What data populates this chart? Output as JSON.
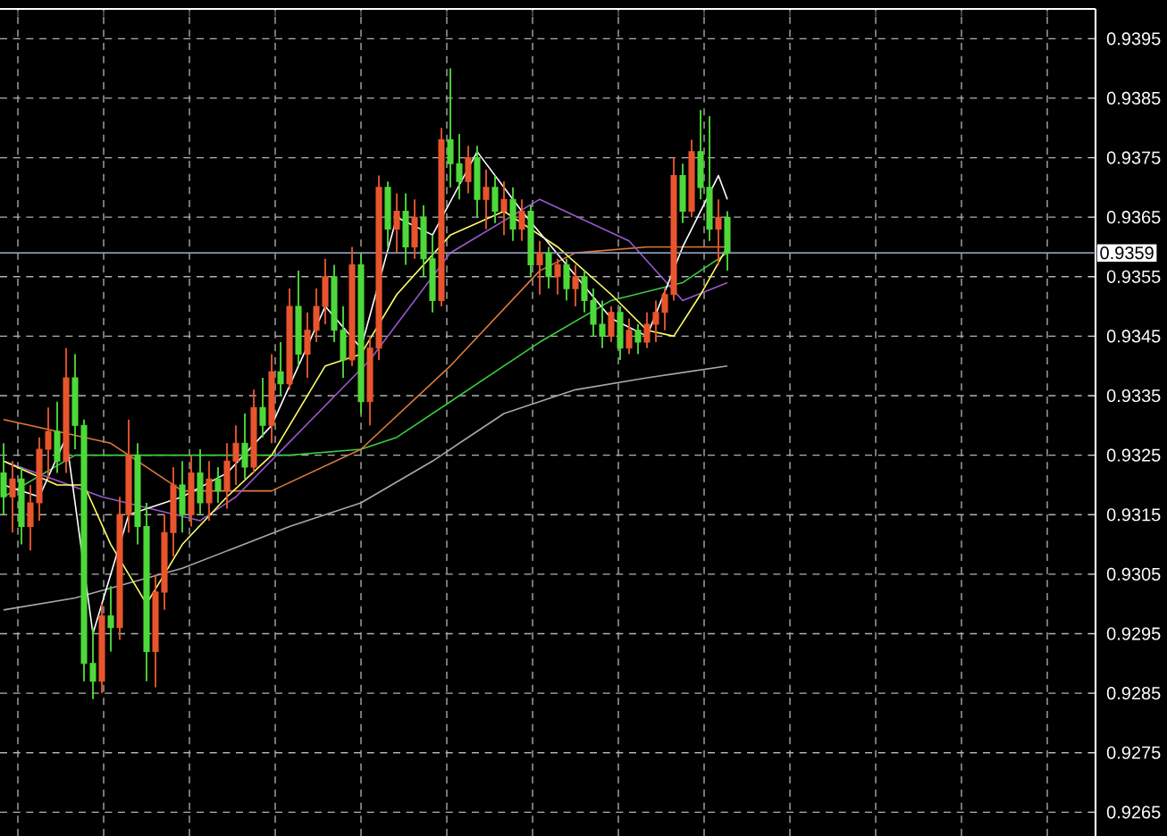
{
  "chart_data": {
    "type": "candlestick",
    "categories": [
      null,
      null,
      null,
      null,
      null,
      null,
      null,
      null,
      null,
      null,
      null,
      null,
      null,
      null,
      null,
      null,
      null,
      null,
      null,
      null,
      null,
      null,
      null,
      null,
      null,
      null,
      null,
      null,
      null,
      null,
      null,
      null,
      null,
      null,
      null,
      null,
      null,
      null,
      null,
      null,
      null,
      null,
      null,
      null,
      null,
      null,
      null,
      null,
      null,
      null,
      null,
      null,
      null,
      null,
      null,
      null,
      null,
      null,
      null,
      null,
      null,
      null,
      null,
      null,
      null,
      null,
      null,
      null,
      null,
      null,
      null,
      null,
      null,
      null,
      null,
      null,
      null,
      null,
      null,
      null,
      null,
      null,
      null,
      null,
      null,
      null,
      null,
      null,
      null,
      null,
      null,
      null,
      null,
      null,
      null,
      null,
      null,
      null,
      null,
      null,
      null,
      null,
      null,
      null,
      null,
      null,
      null,
      null,
      null,
      null,
      null,
      null,
      null,
      null,
      null,
      null,
      null,
      null,
      null,
      null,
      null,
      null,
      null
    ],
    "ohlc": [
      [
        0.9322,
        0.9327,
        0.9315,
        0.9318
      ],
      [
        0.9318,
        0.9324,
        0.9312,
        0.9321
      ],
      [
        0.9321,
        0.9323,
        0.931,
        0.9313
      ],
      [
        0.9313,
        0.932,
        0.9309,
        0.9317
      ],
      [
        0.9317,
        0.9328,
        0.9314,
        0.9326
      ],
      [
        0.9326,
        0.9333,
        0.9321,
        0.9329
      ],
      [
        0.9329,
        0.9334,
        0.9322,
        0.9324
      ],
      [
        0.9324,
        0.9343,
        0.9322,
        0.9338
      ],
      [
        0.9338,
        0.9342,
        0.9326,
        0.933
      ],
      [
        0.933,
        0.9331,
        0.9287,
        0.929
      ],
      [
        0.929,
        0.9296,
        0.9284,
        0.9287
      ],
      [
        0.9287,
        0.93,
        0.9285,
        0.9298
      ],
      [
        0.9298,
        0.9303,
        0.9292,
        0.9296
      ],
      [
        0.9296,
        0.9318,
        0.9294,
        0.9315
      ],
      [
        0.9315,
        0.9331,
        0.9312,
        0.9325
      ],
      [
        0.9325,
        0.9327,
        0.931,
        0.9313
      ],
      [
        0.9313,
        0.9317,
        0.9287,
        0.9292
      ],
      [
        0.9292,
        0.9305,
        0.9286,
        0.9302
      ],
      [
        0.9302,
        0.9315,
        0.9299,
        0.9312
      ],
      [
        0.9312,
        0.9323,
        0.9308,
        0.932
      ],
      [
        0.932,
        0.9324,
        0.9312,
        0.9315
      ],
      [
        0.9315,
        0.9325,
        0.9313,
        0.9322
      ],
      [
        0.9322,
        0.9326,
        0.9315,
        0.9317
      ],
      [
        0.9317,
        0.9324,
        0.9314,
        0.9321
      ],
      [
        0.9321,
        0.9323,
        0.9317,
        0.9319
      ],
      [
        0.9319,
        0.9327,
        0.9316,
        0.9324
      ],
      [
        0.9324,
        0.933,
        0.932,
        0.9327
      ],
      [
        0.9327,
        0.9332,
        0.9321,
        0.9323
      ],
      [
        0.9323,
        0.9336,
        0.9322,
        0.9333
      ],
      [
        0.9333,
        0.9338,
        0.9328,
        0.933
      ],
      [
        0.933,
        0.9342,
        0.9327,
        0.9339
      ],
      [
        0.9339,
        0.9344,
        0.9335,
        0.9337
      ],
      [
        0.9337,
        0.9353,
        0.9336,
        0.935
      ],
      [
        0.935,
        0.9356,
        0.934,
        0.9342
      ],
      [
        0.9342,
        0.9349,
        0.9338,
        0.9346
      ],
      [
        0.9346,
        0.9353,
        0.9344,
        0.935
      ],
      [
        0.935,
        0.9358,
        0.9347,
        0.9355
      ],
      [
        0.9355,
        0.9357,
        0.9344,
        0.9346
      ],
      [
        0.9346,
        0.935,
        0.9338,
        0.9341
      ],
      [
        0.9341,
        0.936,
        0.934,
        0.9357
      ],
      [
        0.9357,
        0.9359,
        0.9332,
        0.9334
      ],
      [
        0.9334,
        0.9345,
        0.933,
        0.9343
      ],
      [
        0.9343,
        0.9372,
        0.9341,
        0.937
      ],
      [
        0.937,
        0.9371,
        0.936,
        0.9363
      ],
      [
        0.9363,
        0.9369,
        0.9359,
        0.9366
      ],
      [
        0.9366,
        0.9369,
        0.9357,
        0.936
      ],
      [
        0.936,
        0.9368,
        0.9358,
        0.9365
      ],
      [
        0.9365,
        0.9367,
        0.9355,
        0.9358
      ],
      [
        0.9358,
        0.9362,
        0.9349,
        0.9351
      ],
      [
        0.9351,
        0.938,
        0.935,
        0.9378
      ],
      [
        0.9378,
        0.939,
        0.937,
        0.9374
      ],
      [
        0.9374,
        0.9379,
        0.9368,
        0.9371
      ],
      [
        0.9371,
        0.9377,
        0.9369,
        0.9375
      ],
      [
        0.9375,
        0.9377,
        0.9365,
        0.9368
      ],
      [
        0.9368,
        0.9373,
        0.9363,
        0.937
      ],
      [
        0.937,
        0.9372,
        0.9364,
        0.9366
      ],
      [
        0.9366,
        0.9371,
        0.9362,
        0.9368
      ],
      [
        0.9368,
        0.937,
        0.9361,
        0.9363
      ],
      [
        0.9363,
        0.9368,
        0.9361,
        0.9366
      ],
      [
        0.9366,
        0.9367,
        0.9355,
        0.9357
      ],
      [
        0.9357,
        0.9361,
        0.9352,
        0.9359
      ],
      [
        0.9359,
        0.936,
        0.9353,
        0.9355
      ],
      [
        0.9355,
        0.9358,
        0.9352,
        0.9357
      ],
      [
        0.9357,
        0.9358,
        0.9351,
        0.9353
      ],
      [
        0.9353,
        0.9357,
        0.935,
        0.9355
      ],
      [
        0.9355,
        0.9356,
        0.9349,
        0.9351
      ],
      [
        0.9351,
        0.9353,
        0.9345,
        0.9347
      ],
      [
        0.9347,
        0.9351,
        0.9343,
        0.9345
      ],
      [
        0.9345,
        0.935,
        0.9344,
        0.9349
      ],
      [
        0.9349,
        0.935,
        0.9341,
        0.9343
      ],
      [
        0.9343,
        0.9348,
        0.9342,
        0.9346
      ],
      [
        0.9346,
        0.9347,
        0.9342,
        0.9344
      ],
      [
        0.9344,
        0.9349,
        0.9343,
        0.9347
      ],
      [
        0.9347,
        0.9351,
        0.9344,
        0.9349
      ],
      [
        0.9349,
        0.9353,
        0.9346,
        0.9352
      ],
      [
        0.9352,
        0.9375,
        0.9351,
        0.9372
      ],
      [
        0.9372,
        0.9374,
        0.9364,
        0.9366
      ],
      [
        0.9366,
        0.9378,
        0.9365,
        0.9376
      ],
      [
        0.9376,
        0.9383,
        0.9368,
        0.937
      ],
      [
        0.937,
        0.9382,
        0.9361,
        0.9363
      ],
      [
        0.9363,
        0.9368,
        0.9357,
        0.9365
      ],
      [
        0.9365,
        0.9366,
        0.9356,
        0.9359
      ],
      null,
      null,
      null,
      null,
      null,
      null,
      null,
      null,
      null,
      null,
      null,
      null,
      null,
      null,
      null,
      null,
      null,
      null,
      null,
      null,
      null,
      null,
      null,
      null,
      null,
      null,
      null,
      null,
      null,
      null,
      null,
      null,
      null,
      null,
      null,
      null,
      null,
      null,
      null,
      null,
      null
    ],
    "colors": [
      "#4ed93a",
      "#e8552d",
      "#4ed93a",
      "#e8552d",
      "#e8552d",
      "#e8552d",
      "#4ed93a",
      "#e8552d",
      "#4ed93a",
      "#4ed93a",
      "#4ed93a",
      "#e8552d",
      "#4ed93a",
      "#e8552d",
      "#e8552d",
      "#4ed93a",
      "#4ed93a",
      "#e8552d",
      "#e8552d",
      "#e8552d",
      "#4ed93a",
      "#e8552d",
      "#4ed93a",
      "#e8552d",
      "#4ed93a",
      "#e8552d",
      "#e8552d",
      "#4ed93a",
      "#e8552d",
      "#4ed93a",
      "#e8552d",
      "#4ed93a",
      "#e8552d",
      "#4ed93a",
      "#e8552d",
      "#e8552d",
      "#e8552d",
      "#4ed93a",
      "#4ed93a",
      "#e8552d",
      "#4ed93a",
      "#e8552d",
      "#e8552d",
      "#4ed93a",
      "#e8552d",
      "#4ed93a",
      "#e8552d",
      "#4ed93a",
      "#4ed93a",
      "#e8552d",
      "#4ed93a",
      "#4ed93a",
      "#e8552d",
      "#4ed93a",
      "#e8552d",
      "#4ed93a",
      "#e8552d",
      "#4ed93a",
      "#e8552d",
      "#4ed93a",
      "#e8552d",
      "#4ed93a",
      "#e8552d",
      "#4ed93a",
      "#e8552d",
      "#4ed93a",
      "#4ed93a",
      "#4ed93a",
      "#e8552d",
      "#4ed93a",
      "#e8552d",
      "#4ed93a",
      "#e8552d",
      "#e8552d",
      "#e8552d",
      "#e8552d",
      "#4ed93a",
      "#e8552d",
      "#4ed93a",
      "#4ed93a",
      "#e8552d",
      "#4ed93a",
      null,
      null,
      null,
      null,
      null,
      null,
      null,
      null,
      null,
      null,
      null,
      null,
      null,
      null,
      null,
      null,
      null,
      null,
      null,
      null,
      null,
      null,
      null,
      null,
      null,
      null,
      null,
      null,
      null,
      null,
      null,
      null,
      null,
      null,
      null,
      null,
      null,
      null,
      null,
      null,
      null
    ],
    "series": [
      {
        "type": "line",
        "color": "#a8a8a8",
        "values": [
          0.9299,
          null,
          null,
          null,
          null,
          null,
          null,
          null,
          0.9301,
          null,
          null,
          null,
          null,
          null,
          null,
          null,
          null,
          null,
          null,
          null,
          0.9306,
          null,
          null,
          null,
          null,
          null,
          null,
          null,
          null,
          null,
          null,
          null,
          0.9313,
          null,
          null,
          null,
          null,
          null,
          null,
          null,
          0.9317,
          null,
          null,
          null,
          null,
          null,
          null,
          null,
          0.9324,
          null,
          null,
          null,
          null,
          null,
          null,
          null,
          0.9332,
          null,
          null,
          null,
          null,
          null,
          null,
          null,
          0.9336,
          null,
          null,
          null,
          null,
          null,
          null,
          null,
          0.9338,
          null,
          null,
          null,
          null,
          null,
          null,
          null,
          null,
          0.934,
          null,
          null,
          null,
          null,
          null,
          null,
          null,
          null,
          null,
          null,
          null,
          null,
          null,
          null,
          null,
          null,
          null,
          null,
          null,
          null,
          null,
          null,
          null,
          null,
          null,
          null,
          null,
          null,
          null,
          null,
          null,
          null,
          null,
          null,
          null,
          null,
          null,
          null,
          null,
          null,
          null
        ]
      },
      {
        "type": "line",
        "color": "#3ccf3c",
        "values": [
          0.9318,
          null,
          null,
          null,
          null,
          null,
          null,
          null,
          0.9325,
          null,
          null,
          null,
          null,
          null,
          null,
          null,
          null,
          null,
          null,
          null,
          0.9325,
          null,
          null,
          null,
          null,
          null,
          null,
          null,
          null,
          null,
          null,
          null,
          0.9325,
          null,
          null,
          null,
          null,
          null,
          null,
          null,
          0.9326,
          null,
          null,
          null,
          0.9328,
          null,
          null,
          null,
          null,
          null,
          null,
          null,
          null,
          null,
          null,
          null,
          0.934,
          null,
          null,
          null,
          0.9344,
          null,
          null,
          null,
          null,
          null,
          null,
          null,
          0.9351,
          null,
          null,
          null,
          null,
          null,
          null,
          null,
          0.9354,
          null,
          null,
          null,
          null,
          0.9359,
          null,
          null,
          null,
          null,
          null,
          null,
          null,
          null,
          null,
          null,
          null,
          null,
          null,
          null,
          null,
          null,
          null,
          null,
          null,
          null,
          null,
          null,
          null,
          null,
          null,
          null,
          null,
          null,
          null,
          null,
          null,
          null,
          null,
          null,
          null,
          null,
          null,
          null,
          null,
          null,
          null
        ]
      },
      {
        "type": "line",
        "color": "#e07a3c",
        "values": [
          0.9331,
          null,
          null,
          null,
          null,
          null,
          null,
          null,
          null,
          null,
          null,
          null,
          0.9327,
          null,
          null,
          null,
          null,
          null,
          null,
          null,
          0.9319,
          null,
          null,
          null,
          null,
          null,
          null,
          null,
          null,
          null,
          0.9319,
          null,
          null,
          null,
          null,
          null,
          null,
          null,
          null,
          null,
          0.9326,
          null,
          null,
          null,
          null,
          null,
          null,
          null,
          null,
          null,
          0.934,
          null,
          null,
          null,
          null,
          null,
          null,
          null,
          null,
          null,
          0.9356,
          null,
          null,
          null,
          0.9359,
          null,
          null,
          null,
          null,
          null,
          null,
          null,
          0.936,
          null,
          null,
          null,
          null,
          null,
          null,
          null,
          null,
          0.936,
          null,
          null,
          null,
          null,
          null,
          null,
          null,
          null,
          null,
          null,
          null,
          null,
          null,
          null,
          null,
          null,
          null,
          null,
          null,
          null,
          null,
          null,
          null,
          null,
          null,
          null,
          null,
          null,
          null,
          null,
          null,
          null,
          null,
          null,
          null,
          null,
          null,
          null,
          null,
          null,
          null
        ]
      },
      {
        "type": "line",
        "color": "#9b59d0",
        "values": [
          0.9324,
          null,
          null,
          null,
          null,
          null,
          null,
          null,
          null,
          null,
          null,
          0.9318,
          null,
          null,
          null,
          null,
          null,
          null,
          null,
          null,
          null,
          null,
          0.9314,
          null,
          null,
          null,
          0.9318,
          null,
          null,
          null,
          null,
          null,
          null,
          null,
          null,
          null,
          null,
          null,
          null,
          null,
          null,
          0.9341,
          null,
          null,
          null,
          null,
          null,
          null,
          null,
          null,
          0.9359,
          null,
          null,
          null,
          null,
          null,
          null,
          null,
          null,
          null,
          0.9368,
          null,
          null,
          null,
          null,
          null,
          null,
          null,
          null,
          null,
          0.9361,
          null,
          null,
          null,
          null,
          null,
          0.9351,
          null,
          null,
          null,
          null,
          0.9354,
          null,
          null,
          null,
          null,
          null,
          null,
          null,
          null,
          null,
          null,
          null,
          null,
          null,
          null,
          null,
          null,
          null,
          null,
          null,
          null,
          null,
          null,
          null,
          null,
          null,
          null,
          null,
          null,
          null,
          null,
          null,
          null,
          null,
          null,
          null,
          null,
          null,
          null,
          null,
          null,
          null
        ]
      },
      {
        "type": "line",
        "color": "#ffff66",
        "values": [
          0.9324,
          null,
          null,
          null,
          null,
          null,
          0.932,
          null,
          null,
          0.932,
          null,
          null,
          0.931,
          null,
          null,
          null,
          0.93,
          null,
          null,
          null,
          0.931,
          null,
          null,
          null,
          null,
          0.9318,
          null,
          null,
          null,
          null,
          0.9325,
          null,
          null,
          null,
          null,
          null,
          0.934,
          null,
          null,
          null,
          0.9342,
          null,
          null,
          null,
          0.9352,
          null,
          null,
          null,
          null,
          null,
          0.9362,
          null,
          null,
          null,
          null,
          null,
          0.9366,
          null,
          null,
          null,
          null,
          null,
          0.936,
          null,
          null,
          null,
          null,
          null,
          0.9352,
          null,
          null,
          null,
          0.9346,
          null,
          null,
          0.9345,
          null,
          null,
          0.9352,
          null,
          null,
          0.936,
          null,
          null,
          null,
          null,
          null,
          null,
          null,
          null,
          null,
          null,
          null,
          null,
          null,
          null,
          null,
          null,
          null,
          null,
          null,
          null,
          null,
          null,
          null,
          null,
          null,
          null,
          null,
          null,
          null,
          null,
          null,
          null,
          null,
          null,
          null,
          null,
          null,
          null,
          null,
          null,
          null
        ]
      },
      {
        "type": "line",
        "color": "#ffffff",
        "values": [
          0.932,
          null,
          null,
          null,
          0.9318,
          null,
          null,
          0.9328,
          null,
          null,
          0.9295,
          null,
          null,
          null,
          0.9315,
          null,
          null,
          null,
          null,
          null,
          0.9318,
          null,
          null,
          null,
          null,
          0.9322,
          null,
          null,
          null,
          null,
          0.933,
          null,
          null,
          null,
          null,
          null,
          0.935,
          null,
          null,
          null,
          0.9343,
          null,
          null,
          null,
          0.9365,
          null,
          null,
          null,
          0.9362,
          null,
          null,
          null,
          null,
          0.9376,
          null,
          null,
          null,
          null,
          0.9366,
          null,
          null,
          null,
          null,
          0.9357,
          null,
          null,
          null,
          null,
          0.9348,
          null,
          null,
          null,
          0.9345,
          null,
          null,
          null,
          0.936,
          null,
          null,
          null,
          0.9372,
          0.9368,
          null,
          null,
          null,
          null,
          null,
          null,
          null,
          null,
          null,
          null,
          null,
          null,
          null,
          null,
          null,
          null,
          null,
          null,
          null,
          null,
          null,
          null,
          null,
          null,
          null,
          null,
          null,
          null,
          null,
          null,
          null,
          null,
          null,
          null,
          null,
          null,
          null,
          null,
          null,
          null,
          null
        ]
      }
    ],
    "ylim": [
      0.9261,
      0.94
    ],
    "yticks": [
      0.9265,
      0.9275,
      0.9285,
      0.9295,
      0.9305,
      0.9315,
      0.9325,
      0.9335,
      0.9345,
      0.9355,
      0.9365,
      0.9375,
      0.9385,
      0.9395
    ],
    "grid": true,
    "tick_labels": "y",
    "ref_lines": [
      {
        "axis": "y",
        "value": 0.9359,
        "label": "0.9359",
        "color": "#8a96b4"
      }
    ]
  }
}
